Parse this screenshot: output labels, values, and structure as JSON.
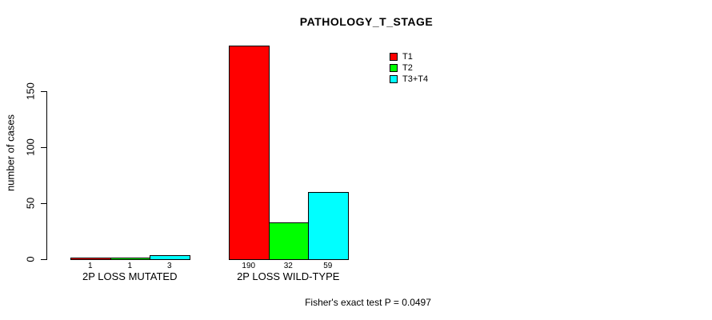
{
  "chart_data": {
    "type": "bar",
    "title": "PATHOLOGY_T_STAGE",
    "ylabel": "number of cases",
    "xlabel": "",
    "categories": [
      "2P LOSS MUTATED",
      "2P LOSS WILD-TYPE"
    ],
    "series": [
      {
        "name": "T1",
        "color": "#ff0000",
        "values": [
          1,
          190
        ]
      },
      {
        "name": "T2",
        "color": "#00ff00",
        "values": [
          1,
          32
        ]
      },
      {
        "name": "T3+T4",
        "color": "#00ffff",
        "values": [
          3,
          59
        ]
      }
    ],
    "bar_value_labels": [
      [
        "1",
        "1",
        "3"
      ],
      [
        "190",
        "32",
        "59"
      ]
    ],
    "yticks": [
      0,
      50,
      100,
      150
    ],
    "ylim": [
      0,
      192
    ],
    "grid": false,
    "legend_position": "top-right",
    "footer": "Fisher's exact test P = 0.0497"
  },
  "colors": {
    "background": "#ffffff",
    "text": "#000000",
    "axis": "#000000"
  }
}
